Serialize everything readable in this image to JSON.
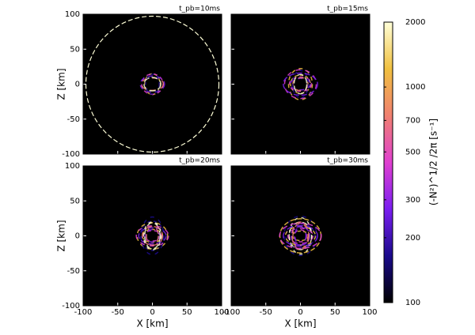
{
  "chart_data": {
    "type": "heatmap",
    "panels": [
      {
        "title": "t_pb=10ms"
      },
      {
        "title": "t_pb=15ms"
      },
      {
        "title": "t_pb=20ms"
      },
      {
        "title": "t_pb=30ms"
      }
    ],
    "xlabel": "X [km]",
    "ylabel": "Z [km]",
    "xlim": [
      -100,
      100
    ],
    "xticks": [
      -100,
      -50,
      0,
      50,
      100
    ],
    "ylim": [
      -100,
      100
    ],
    "yticks": [
      -100,
      -50,
      0,
      50,
      100
    ],
    "colorbar": {
      "label": "(-N²)^1/2 /2π [s⁻¹]",
      "lim": [
        100,
        2000
      ],
      "ticks": [
        100,
        200,
        300,
        500,
        700,
        1000,
        2000
      ],
      "log": true,
      "colors": [
        "#000000",
        "#1a0a8c",
        "#7a1ef0",
        "#e040d0",
        "#f08070",
        "#f0c040",
        "#ffffd8"
      ]
    }
  }
}
